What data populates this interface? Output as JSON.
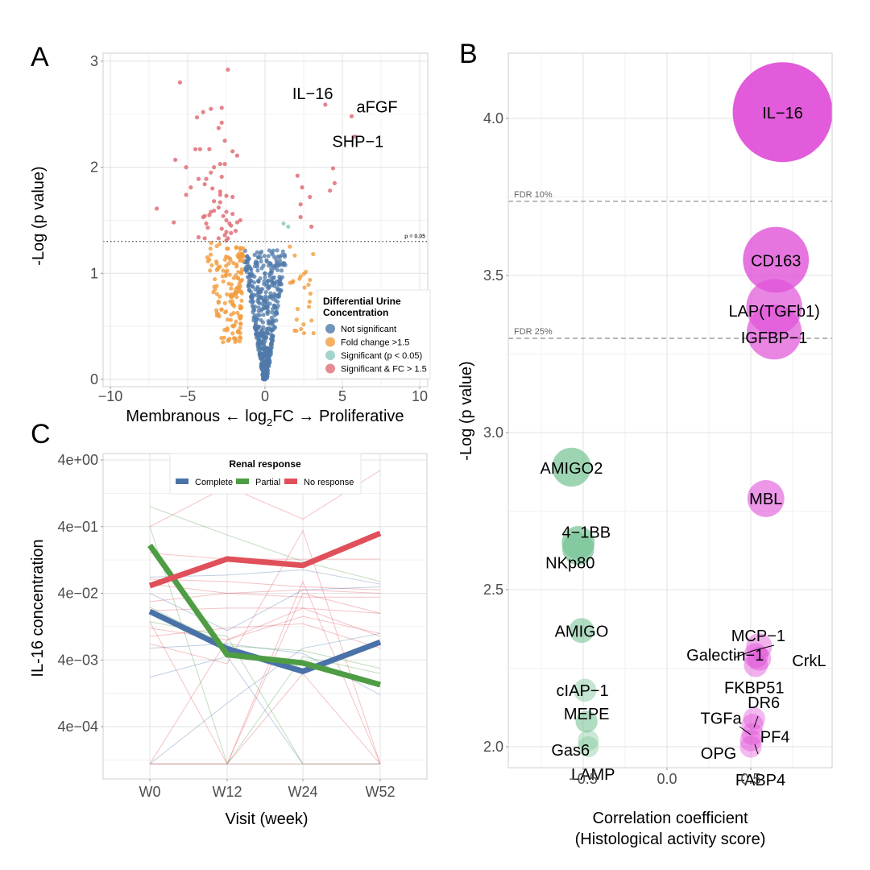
{
  "figure": {
    "panel_letters": [
      "A",
      "B",
      "C"
    ]
  },
  "chart_data": [
    {
      "id": "A",
      "type": "scatter",
      "title": "",
      "xlabel_parts": [
        "Membranous ← log",
        "2",
        "FC → Proliferative"
      ],
      "ylabel": "-Log (p value)",
      "xlim": [
        -10.5,
        10.5
      ],
      "ylim": [
        0,
        3.08
      ],
      "xticks": [
        -10,
        -5,
        0,
        5,
        10
      ],
      "xtick_labels": [
        "−10",
        "−5",
        "0",
        "5",
        "10"
      ],
      "yticks": [
        0,
        1,
        2,
        3
      ],
      "ytick_labels": [
        "0",
        "1",
        "2",
        "3"
      ],
      "grid": true,
      "threshold": {
        "y": 1.301,
        "label": "p = 0.05",
        "style": "dotted"
      },
      "legend": {
        "title_lines": [
          "Differential Urine",
          "Concentration"
        ],
        "placement": "bottom-right",
        "entries": [
          {
            "label": "Not significant",
            "color": "#4f79aa"
          },
          {
            "label": "Fold change >1.5",
            "color": "#f39c3f"
          },
          {
            "label": "Significant (p < 0.05)",
            "color": "#8ccbc0"
          },
          {
            "label": "Significant & FC > 1.5",
            "color": "#e06e77"
          }
        ]
      },
      "annotations": [
        {
          "text": "IL−16",
          "x": 3.9,
          "y": 2.59
        },
        {
          "text": "aFGF",
          "x": 5.6,
          "y": 2.48
        },
        {
          "text": "SHP−1",
          "x": 5.8,
          "y": 2.29
        }
      ],
      "series": [
        {
          "name": "Significant & FC > 1.5",
          "color": "#e06e77",
          "points": [
            [
              3.9,
              2.59
            ],
            [
              5.6,
              2.48
            ],
            [
              5.8,
              2.29
            ],
            [
              4.4,
              1.99
            ],
            [
              2.1,
              1.92
            ],
            [
              4.5,
              1.85
            ],
            [
              2.4,
              1.81
            ],
            [
              4.2,
              1.78
            ],
            [
              2.9,
              1.72
            ],
            [
              2.3,
              1.65
            ],
            [
              2.3,
              1.53
            ],
            [
              3.0,
              1.44
            ],
            [
              -2.4,
              2.92
            ],
            [
              -5.5,
              2.8
            ],
            [
              -2.8,
              2.56
            ],
            [
              -3.5,
              2.55
            ],
            [
              -4.0,
              2.52
            ],
            [
              -4.4,
              2.47
            ],
            [
              -2.8,
              2.42
            ],
            [
              -3.0,
              2.37
            ],
            [
              -2.6,
              2.25
            ],
            [
              -4.5,
              2.17
            ],
            [
              -4.2,
              2.17
            ],
            [
              -3.6,
              2.17
            ],
            [
              -2.1,
              2.15
            ],
            [
              -1.8,
              2.11
            ],
            [
              -5.8,
              2.07
            ],
            [
              -5.1,
              2.0
            ],
            [
              -3.3,
              2.0
            ],
            [
              -2.9,
              2.03
            ],
            [
              -2.6,
              2.03
            ],
            [
              -3.5,
              1.95
            ],
            [
              -2.8,
              1.91
            ],
            [
              -4.3,
              1.89
            ],
            [
              -3.8,
              1.89
            ],
            [
              -3.9,
              1.84
            ],
            [
              -4.8,
              1.81
            ],
            [
              -3.4,
              1.8
            ],
            [
              -2.9,
              1.77
            ],
            [
              -5.1,
              1.74
            ],
            [
              -2.9,
              1.74
            ],
            [
              -2.5,
              1.73
            ],
            [
              -2.1,
              1.72
            ],
            [
              -3.3,
              1.68
            ],
            [
              -2.9,
              1.67
            ],
            [
              -7.0,
              1.61
            ],
            [
              -3.0,
              1.62
            ],
            [
              -2.5,
              1.58
            ],
            [
              -3.5,
              1.58
            ],
            [
              -3.3,
              1.59
            ],
            [
              -3.6,
              1.55
            ],
            [
              -3.9,
              1.54
            ],
            [
              -2.1,
              1.56
            ],
            [
              -4.0,
              1.53
            ],
            [
              -2.7,
              1.54
            ],
            [
              -5.9,
              1.48
            ],
            [
              -3.8,
              1.47
            ],
            [
              -2.5,
              1.5
            ],
            [
              -1.6,
              1.5
            ],
            [
              -2.3,
              1.47
            ],
            [
              -3.7,
              1.43
            ],
            [
              -2.8,
              1.42
            ],
            [
              -1.8,
              1.48
            ],
            [
              -2.5,
              1.39
            ],
            [
              -2.2,
              1.38
            ],
            [
              -1.9,
              1.4
            ],
            [
              -2.2,
              1.45
            ],
            [
              -4.3,
              1.34
            ],
            [
              -3.9,
              1.33
            ],
            [
              -3.0,
              1.33
            ],
            [
              -2.6,
              1.36
            ],
            [
              -2.4,
              1.33
            ],
            [
              -2.5,
              1.31
            ]
          ]
        },
        {
          "name": "Significant (p < 0.05)",
          "color": "#8ccbc0",
          "points": [
            [
              1.2,
              1.47
            ],
            [
              1.5,
              1.44
            ]
          ]
        },
        {
          "name": "Fold change >1.5",
          "color": "#f39c3f",
          "cluster": {
            "x_range_neg": [
              -4.9,
              -1.4
            ],
            "x_range_pos": [
              1.6,
              3.3
            ],
            "y_range": [
              0.35,
              1.29
            ],
            "count_neg": 160,
            "count_pos": 25
          }
        },
        {
          "name": "Not significant",
          "color": "#4f79aa",
          "cluster": {
            "x_range": [
              -1.5,
              1.6
            ],
            "y_range": [
              0.0,
              1.25
            ],
            "count": 520,
            "shape": "v"
          }
        }
      ]
    },
    {
      "id": "B",
      "type": "scatter",
      "subtype": "bubble",
      "xlabel_lines": [
        "Correlation coefficient",
        "(Histological activity score)"
      ],
      "ylabel": "-Log (p value)",
      "xlim": [
        -0.95,
        0.98
      ],
      "ylim": [
        1.93,
        4.21
      ],
      "xticks": [
        -0.5,
        0.0,
        0.5
      ],
      "xtick_labels": [
        "−0.5",
        "0.0",
        "0.5"
      ],
      "yticks": [
        2.0,
        2.5,
        3.0,
        3.5,
        4.0
      ],
      "ytick_labels": [
        "2.0",
        "2.5",
        "3.0",
        "3.5",
        "4.0"
      ],
      "grid": true,
      "thresholds": [
        {
          "y": 3.736,
          "label": "FDR 10%",
          "style": "dashed"
        },
        {
          "y": 3.3,
          "label": "FDR 25%",
          "style": "dashed"
        }
      ],
      "colors": {
        "positive": "#e052d8",
        "negative": "#7cc598"
      },
      "points": [
        {
          "label": "IL−16",
          "x": 0.69,
          "y": 4.02,
          "size": 1.0,
          "alpha": 0.95
        },
        {
          "label": "CD163",
          "x": 0.65,
          "y": 3.55,
          "size": 0.66,
          "alpha": 0.8
        },
        {
          "label": "LAP(TGFb1)",
          "x": 0.64,
          "y": 3.4,
          "size": 0.56,
          "alpha": 0.7
        },
        {
          "label": "IGFBP−1",
          "x": 0.64,
          "y": 3.32,
          "size": 0.55,
          "alpha": 0.7
        },
        {
          "label": "MBL",
          "x": 0.59,
          "y": 2.79,
          "size": 0.37,
          "alpha": 0.6
        },
        {
          "label": "MCP−1",
          "x": 0.55,
          "y": 2.32,
          "size": 0.26,
          "alpha": 0.45
        },
        {
          "label": "Galectin−1",
          "x": 0.53,
          "y": 2.29,
          "size": 0.25,
          "alpha": 0.45
        },
        {
          "label": "CrkL",
          "x": 0.55,
          "y": 2.28,
          "size": 0.24,
          "alpha": 0.45
        },
        {
          "label": "FKBP51",
          "x": 0.53,
          "y": 2.26,
          "size": 0.24,
          "alpha": 0.45
        },
        {
          "label": "DR6",
          "x": 0.52,
          "y": 2.09,
          "size": 0.22,
          "alpha": 0.4
        },
        {
          "label": "TGFa",
          "x": 0.51,
          "y": 2.07,
          "size": 0.22,
          "alpha": 0.4
        },
        {
          "label": "PF4",
          "x": 0.51,
          "y": 2.04,
          "size": 0.22,
          "alpha": 0.4
        },
        {
          "label": "OPG",
          "x": 0.5,
          "y": 2.02,
          "size": 0.22,
          "alpha": 0.4
        },
        {
          "label": "FABP4",
          "x": 0.5,
          "y": 2.0,
          "size": 0.22,
          "alpha": 0.4
        },
        {
          "label": "AMIGO2",
          "x": -0.57,
          "y": 2.89,
          "size": 0.39,
          "alpha": 0.75
        },
        {
          "label": "4−1BB",
          "x": -0.53,
          "y": 2.65,
          "size": 0.33,
          "alpha": 0.75
        },
        {
          "label": "NKp80",
          "x": -0.53,
          "y": 2.63,
          "size": 0.32,
          "alpha": 0.75
        },
        {
          "label": "AMIGO",
          "x": -0.51,
          "y": 2.37,
          "size": 0.25,
          "alpha": 0.6
        },
        {
          "label": "cIAP−1",
          "x": -0.49,
          "y": 2.18,
          "size": 0.23,
          "alpha": 0.45
        },
        {
          "label": "MEPE",
          "x": -0.48,
          "y": 2.08,
          "size": 0.22,
          "alpha": 0.6
        },
        {
          "label": "Gas6",
          "x": -0.47,
          "y": 2.02,
          "size": 0.21,
          "alpha": 0.4
        },
        {
          "label": "LAMP",
          "x": -0.47,
          "y": 2.0,
          "size": 0.21,
          "alpha": 0.4
        }
      ]
    },
    {
      "id": "C",
      "type": "line",
      "xlabel": "Visit (week)",
      "ylabel": "IL-16 concentration",
      "yscale": "log10",
      "categories": [
        "W0",
        "W12",
        "W24",
        "W52"
      ],
      "ylim": [
        7.5e-05,
        4.8
      ],
      "yticks": [
        4,
        0.4,
        0.04,
        0.004,
        0.0004
      ],
      "ytick_labels": [
        "4e+00",
        "4e−01",
        "4e−02",
        "4e−03",
        "4e−04"
      ],
      "grid": true,
      "legend": {
        "title": "Renal response",
        "placement": "top",
        "entries": [
          {
            "label": "Complete",
            "color": "#4a72a8"
          },
          {
            "label": "Partial",
            "color": "#4e9d44"
          },
          {
            "label": "No response",
            "color": "#e0505a"
          }
        ]
      },
      "floor_value": 0.00011,
      "series": [
        {
          "name": "Complete",
          "color": "#4a72a8",
          "values": [
            0.0214,
            0.0059,
            0.0027,
            0.0074
          ]
        },
        {
          "name": "Partial",
          "color": "#4e9d44",
          "values": [
            0.21,
            0.0048,
            0.0036,
            0.0017
          ]
        },
        {
          "name": "No response",
          "color": "#e0505a",
          "values": [
            0.052,
            0.131,
            0.105,
            0.318
          ]
        }
      ],
      "individual_series": [
        {
          "group": "No response",
          "values": [
            0.4,
            1.6,
            0.52,
            2.8
          ]
        },
        {
          "group": "No response",
          "values": [
            0.16,
            0.13,
            0.13,
            0.13
          ]
        },
        {
          "group": "No response",
          "values": [
            0.065,
            0.06,
            0.05,
            0.045
          ]
        },
        {
          "group": "No response",
          "values": [
            0.055,
            0.04,
            0.045,
            0.04
          ]
        },
        {
          "group": "No response",
          "values": [
            0.03,
            0.04,
            0.035,
            0.035
          ]
        },
        {
          "group": "No response",
          "values": [
            0.022,
            0.024,
            0.024,
            0.02
          ]
        },
        {
          "group": "No response",
          "values": [
            0.012,
            0.008,
            0.018,
            0.01
          ]
        },
        {
          "group": "No response",
          "values": [
            0.009,
            0.012,
            0.014,
            0.006
          ]
        },
        {
          "group": "No response",
          "values": [
            0.007,
            0.0035,
            0.35,
            0.00011
          ]
        },
        {
          "group": "No response",
          "values": [
            0.00011,
            0.00011,
            0.04,
            0.02
          ]
        },
        {
          "group": "No response",
          "values": [
            0.00011,
            0.008,
            0.024,
            0.009
          ]
        },
        {
          "group": "No response",
          "values": [
            0.015,
            0.00011,
            0.06,
            0.00011
          ]
        },
        {
          "group": "No response",
          "values": [
            0.00011,
            0.00011,
            0.0025,
            0.00011
          ]
        },
        {
          "group": "Complete",
          "values": [
            0.07,
            0.075,
            0.09,
            0.055
          ]
        },
        {
          "group": "Complete",
          "values": [
            0.04,
            0.011,
            0.045,
            0.05
          ]
        },
        {
          "group": "Complete",
          "values": [
            0.006,
            0.007,
            0.005,
            0.0012
          ]
        },
        {
          "group": "Complete",
          "values": [
            0.0022,
            0.0045,
            0.00011,
            0.00011
          ]
        },
        {
          "group": "Complete",
          "values": [
            0.00011,
            0.0009,
            0.006,
            0.01
          ]
        },
        {
          "group": "Partial",
          "values": [
            0.8,
            0.3,
            0.12,
            0.06
          ]
        },
        {
          "group": "Partial",
          "values": [
            0.4,
            0.00011,
            0.0045,
            0.0025
          ]
        },
        {
          "group": "Partial",
          "values": [
            0.025,
            0.0065,
            0.0055,
            0.003
          ]
        },
        {
          "group": "Partial",
          "values": [
            0.015,
            0.009,
            0.00011,
            0.00011
          ]
        }
      ]
    }
  ]
}
